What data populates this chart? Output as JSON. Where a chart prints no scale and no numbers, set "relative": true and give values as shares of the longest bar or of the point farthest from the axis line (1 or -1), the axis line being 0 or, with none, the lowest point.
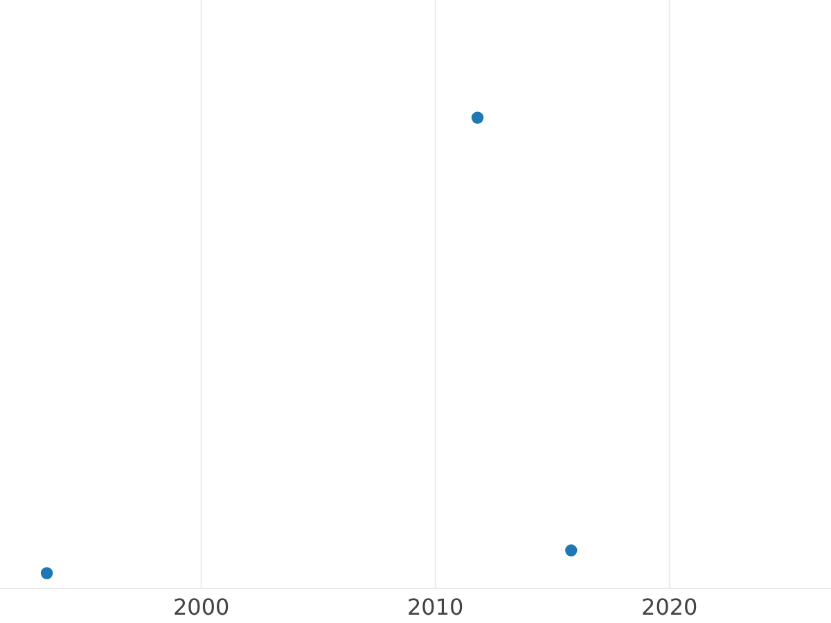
{
  "chart_data": {
    "type": "scatter",
    "relative": true,
    "x": [
      1993.4,
      2011.8,
      2015.8
    ],
    "series": [
      {
        "color": "#1f77b4",
        "values": [
          0,
          1,
          0.05
        ]
      }
    ],
    "xlim": [
      1991.4,
      2026.9
    ],
    "xticks": [
      2000,
      2010,
      2020
    ],
    "grid": "x",
    "marker": "circle"
  }
}
